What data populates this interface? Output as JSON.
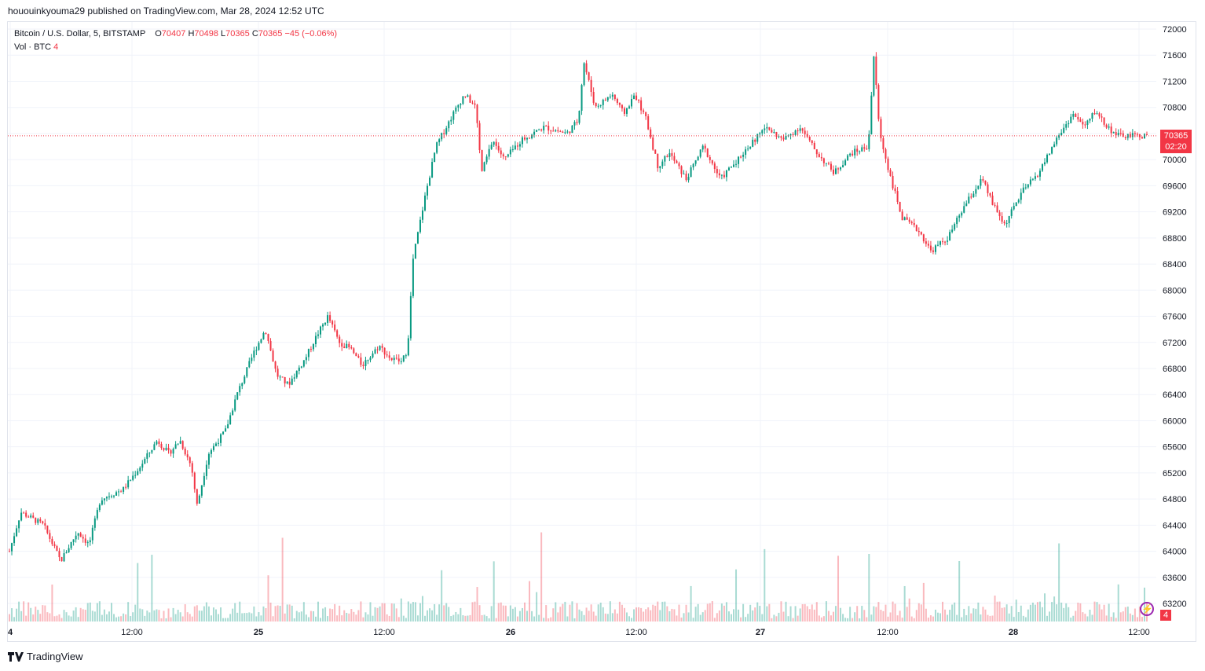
{
  "header": {
    "published_text": "hououinkyouma29 published on TradingView.com, Mar 28, 2024 12:52 UTC"
  },
  "legend": {
    "symbol": "Bitcoin / U.S. Dollar, 5, BITSTAMP",
    "o_label": "O",
    "o_value": "70407",
    "h_label": "H",
    "h_value": "70498",
    "l_label": "L",
    "l_value": "70365",
    "c_label": "C",
    "c_value": "70365",
    "change": "−45 (−0.06%)",
    "vol_label": "Vol · BTC",
    "vol_value": "4"
  },
  "price_tag": {
    "price": "70365",
    "countdown": "02:20"
  },
  "volume_badge": "4",
  "footer": {
    "brand": "TradingView"
  },
  "colors": {
    "up": "#089981",
    "down": "#f23645",
    "grid": "#f0f3fa",
    "axis_text": "#131722"
  },
  "icons": [
    "tradingview-logo-icon",
    "lightning-icon"
  ],
  "chart_data": {
    "type": "candlestick",
    "title": "Bitcoin / U.S. Dollar, 5, BITSTAMP",
    "y_axis_ticks": [
      "72000",
      "71600",
      "71200",
      "70800",
      "70400",
      "70000",
      "69600",
      "69200",
      "68800",
      "68400",
      "68000",
      "67600",
      "67200",
      "66800",
      "66400",
      "66000",
      "65600",
      "65200",
      "64800",
      "64400",
      "64000",
      "63600",
      "63200"
    ],
    "x_axis_ticks": [
      "4",
      "12:00",
      "25",
      "12:00",
      "26",
      "12:00",
      "27",
      "12:00",
      "28",
      "12:00"
    ],
    "ylim": [
      63000,
      72100
    ],
    "last_price": 70365,
    "grid": true,
    "price_path": [
      [
        0,
        64000
      ],
      [
        0.01,
        64600
      ],
      [
        0.03,
        64400
      ],
      [
        0.045,
        63850
      ],
      [
        0.06,
        64300
      ],
      [
        0.07,
        64100
      ],
      [
        0.08,
        64800
      ],
      [
        0.1,
        64950
      ],
      [
        0.115,
        65300
      ],
      [
        0.13,
        65700
      ],
      [
        0.14,
        65500
      ],
      [
        0.15,
        65700
      ],
      [
        0.16,
        65300
      ],
      [
        0.165,
        64700
      ],
      [
        0.175,
        65500
      ],
      [
        0.19,
        65850
      ],
      [
        0.2,
        66400
      ],
      [
        0.215,
        67050
      ],
      [
        0.225,
        67400
      ],
      [
        0.235,
        66700
      ],
      [
        0.245,
        66550
      ],
      [
        0.26,
        66950
      ],
      [
        0.27,
        67300
      ],
      [
        0.28,
        67600
      ],
      [
        0.29,
        67200
      ],
      [
        0.3,
        67100
      ],
      [
        0.31,
        66850
      ],
      [
        0.325,
        67150
      ],
      [
        0.335,
        66950
      ],
      [
        0.345,
        66900
      ],
      [
        0.35,
        67100
      ],
      [
        0.355,
        68500
      ],
      [
        0.365,
        69400
      ],
      [
        0.375,
        70200
      ],
      [
        0.39,
        70700
      ],
      [
        0.4,
        71000
      ],
      [
        0.41,
        70800
      ],
      [
        0.415,
        69800
      ],
      [
        0.425,
        70300
      ],
      [
        0.435,
        70000
      ],
      [
        0.45,
        70300
      ],
      [
        0.47,
        70500
      ],
      [
        0.49,
        70400
      ],
      [
        0.5,
        70600
      ],
      [
        0.505,
        71500
      ],
      [
        0.515,
        70800
      ],
      [
        0.53,
        71000
      ],
      [
        0.54,
        70700
      ],
      [
        0.55,
        71000
      ],
      [
        0.56,
        70600
      ],
      [
        0.57,
        69900
      ],
      [
        0.58,
        70100
      ],
      [
        0.595,
        69700
      ],
      [
        0.61,
        70200
      ],
      [
        0.625,
        69700
      ],
      [
        0.64,
        70000
      ],
      [
        0.655,
        70300
      ],
      [
        0.665,
        70500
      ],
      [
        0.68,
        70300
      ],
      [
        0.695,
        70500
      ],
      [
        0.71,
        70100
      ],
      [
        0.725,
        69800
      ],
      [
        0.74,
        70100
      ],
      [
        0.755,
        70200
      ],
      [
        0.76,
        71600
      ],
      [
        0.765,
        70400
      ],
      [
        0.775,
        69700
      ],
      [
        0.785,
        69100
      ],
      [
        0.8,
        68900
      ],
      [
        0.81,
        68600
      ],
      [
        0.825,
        68800
      ],
      [
        0.84,
        69300
      ],
      [
        0.855,
        69700
      ],
      [
        0.865,
        69300
      ],
      [
        0.875,
        69000
      ],
      [
        0.89,
        69500
      ],
      [
        0.905,
        69800
      ],
      [
        0.92,
        70300
      ],
      [
        0.935,
        70700
      ],
      [
        0.945,
        70500
      ],
      [
        0.955,
        70750
      ],
      [
        0.965,
        70500
      ],
      [
        0.975,
        70365
      ]
    ]
  }
}
